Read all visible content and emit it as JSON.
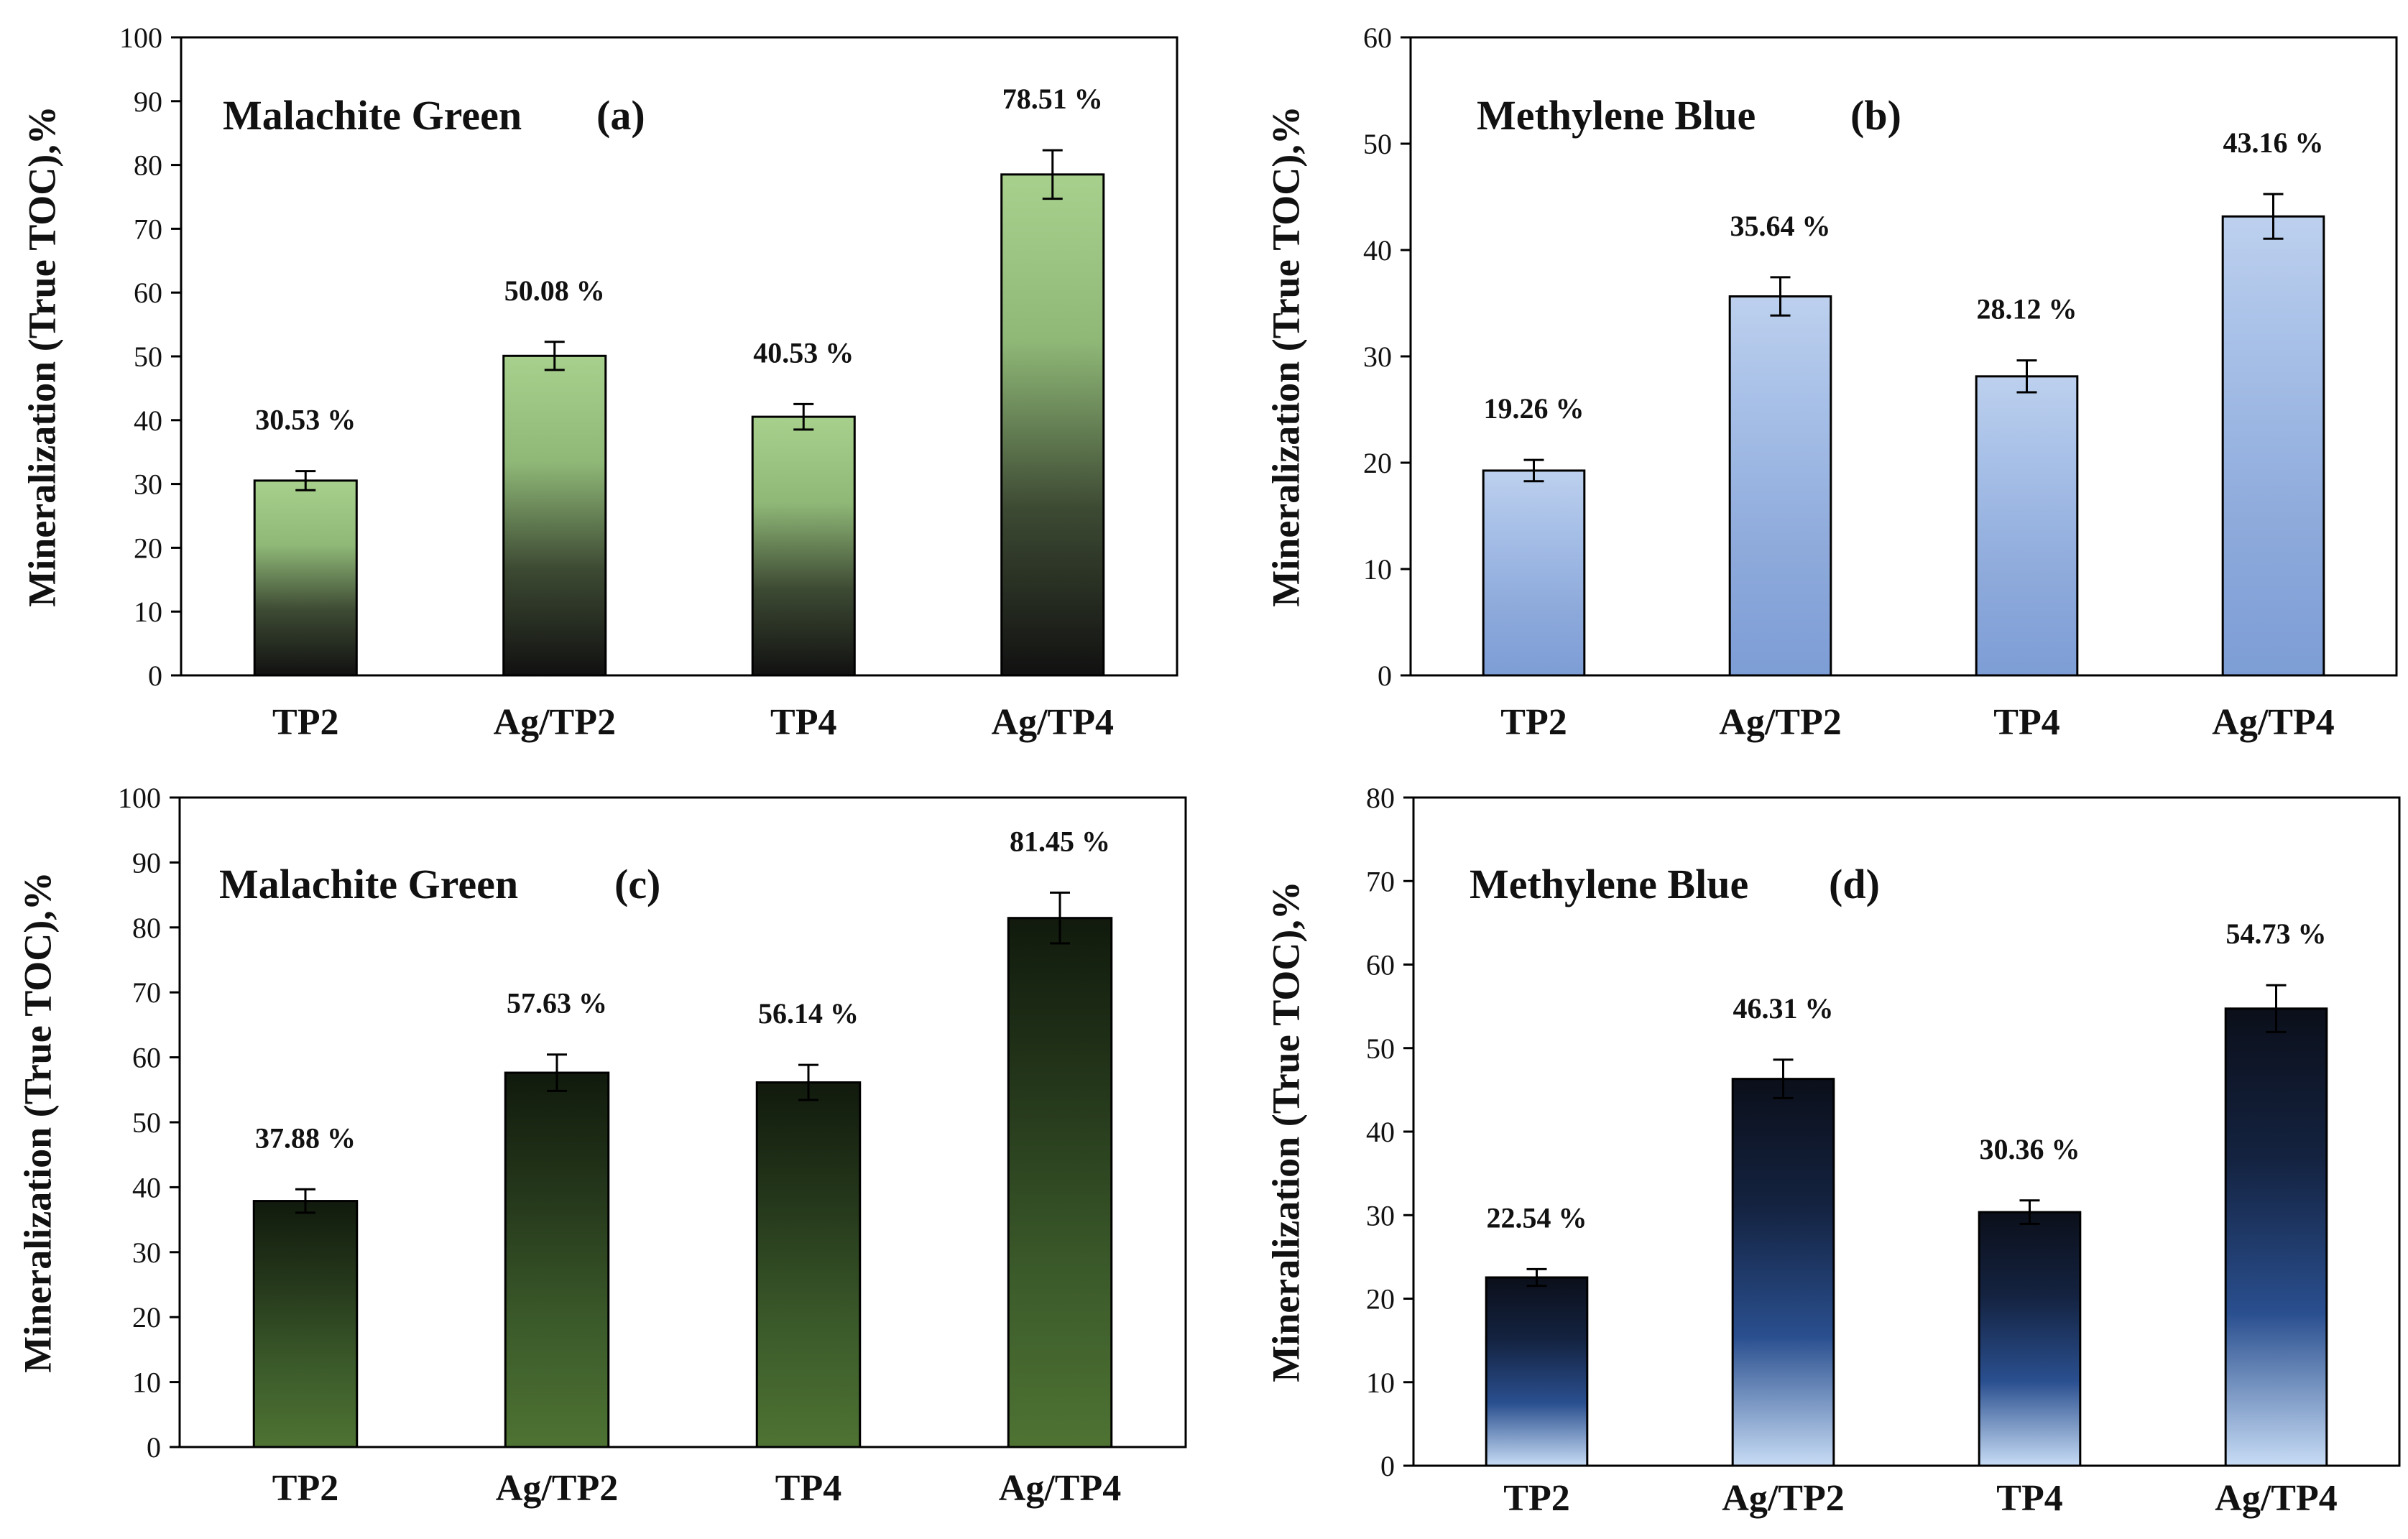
{
  "chart_data": [
    {
      "type": "bar",
      "panel": "(a)",
      "title": "Malachite Green",
      "ylabel": "Mineralization (True TOC),%",
      "xlabel": "",
      "categories": [
        "TP2",
        "Ag/TP2",
        "TP4",
        "Ag/TP4"
      ],
      "values": [
        30.53,
        50.08,
        40.53,
        78.51
      ],
      "errors": [
        1.5,
        2.2,
        2.0,
        3.8
      ],
      "value_labels": [
        "30.53 %",
        "50.08 %",
        "40.53 %",
        "78.51 %"
      ],
      "ylim": [
        0,
        100
      ],
      "yticks": [
        0,
        10,
        20,
        30,
        40,
        50,
        60,
        70,
        80,
        90,
        100
      ],
      "gradient": [
        "#a8d08d",
        "#8fb877",
        "#3d4a33",
        "#111111"
      ],
      "grid": false
    },
    {
      "type": "bar",
      "panel": "(b)",
      "title": "Methylene Blue",
      "ylabel": "Mineralization (True TOC),%",
      "xlabel": "",
      "categories": [
        "TP2",
        "Ag/TP2",
        "TP4",
        "Ag/TP4"
      ],
      "values": [
        19.26,
        35.64,
        28.12,
        43.16
      ],
      "errors": [
        1.0,
        1.8,
        1.5,
        2.1
      ],
      "value_labels": [
        "19.26 %",
        "35.64 %",
        "28.12 %",
        "43.16 %"
      ],
      "ylim": [
        0,
        60
      ],
      "yticks": [
        0,
        10,
        20,
        30,
        40,
        50,
        60
      ],
      "gradient": [
        "#bdd0ee",
        "#a3bde6",
        "#8eaadb",
        "#7d9dd6"
      ],
      "grid": false
    },
    {
      "type": "bar",
      "panel": "(c)",
      "title": "Malachite Green",
      "ylabel": "Mineralization (True TOC),%",
      "xlabel": "",
      "categories": [
        "TP2",
        "Ag/TP2",
        "TP4",
        "Ag/TP4"
      ],
      "values": [
        37.88,
        57.63,
        56.14,
        81.45
      ],
      "errors": [
        1.8,
        2.8,
        2.7,
        3.9
      ],
      "value_labels": [
        "37.88 %",
        "57.63 %",
        "56.14 %",
        "81.45 %"
      ],
      "ylim": [
        0,
        100
      ],
      "yticks": [
        0,
        10,
        20,
        30,
        40,
        50,
        60,
        70,
        80,
        90,
        100
      ],
      "gradient": [
        "#111a0d",
        "#25381b",
        "#3b5a2a",
        "#4e7333"
      ],
      "grid": false
    },
    {
      "type": "bar",
      "panel": "(d)",
      "title": "Methylene Blue",
      "ylabel": "Mineralization (True TOC),%",
      "xlabel": "",
      "categories": [
        "TP2",
        "Ag/TP2",
        "TP4",
        "Ag/TP4"
      ],
      "values": [
        22.54,
        46.31,
        30.36,
        54.73
      ],
      "errors": [
        1.0,
        2.3,
        1.4,
        2.8
      ],
      "value_labels": [
        "22.54 %",
        "46.31 %",
        "30.36 %",
        "54.73 %"
      ],
      "ylim": [
        0,
        80
      ],
      "yticks": [
        0,
        10,
        20,
        30,
        40,
        50,
        60,
        70,
        80
      ],
      "gradient": [
        "#0b0f1a",
        "#142341",
        "#2a4f8f",
        "#c7dcf5"
      ],
      "grid": false
    }
  ]
}
